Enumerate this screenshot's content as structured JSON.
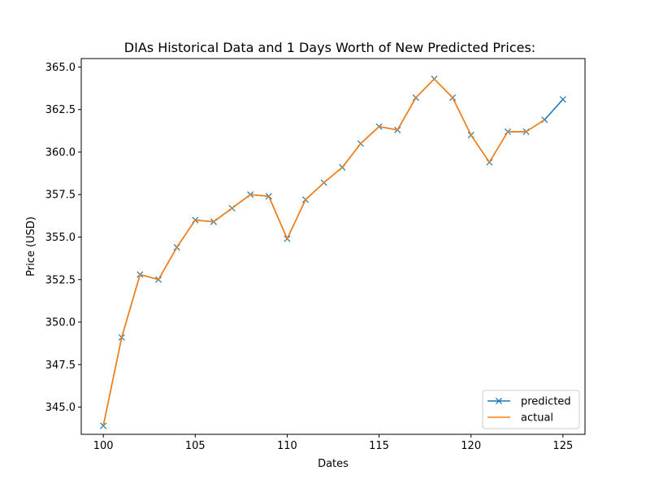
{
  "chart_data": {
    "type": "line",
    "title": "DIAs Historical Data and 1 Days Worth of New Predicted Prices:",
    "xlabel": "Dates",
    "ylabel": "Price (USD)",
    "xlim": [
      98.8,
      126.2
    ],
    "ylim": [
      343.4,
      365.5
    ],
    "xticks": [
      100,
      105,
      110,
      115,
      120,
      125
    ],
    "yticks": [
      345.0,
      347.5,
      350.0,
      352.5,
      355.0,
      357.5,
      360.0,
      362.5,
      365.0
    ],
    "xtick_labels": [
      "100",
      "105",
      "110",
      "115",
      "120",
      "125"
    ],
    "ytick_labels": [
      "345.0",
      "347.5",
      "350.0",
      "352.5",
      "355.0",
      "357.5",
      "360.0",
      "362.5",
      "365.0"
    ],
    "grid": false,
    "legend_position": "lower-right",
    "series": [
      {
        "name": "predicted",
        "color": "#1f77b4",
        "marker": "x",
        "x": [
          100,
          101,
          102,
          103,
          104,
          105,
          106,
          107,
          108,
          109,
          110,
          111,
          112,
          113,
          114,
          115,
          116,
          117,
          118,
          119,
          120,
          121,
          122,
          123,
          124,
          125
        ],
        "y": [
          343.9,
          349.1,
          352.8,
          352.5,
          354.4,
          356.0,
          355.9,
          356.7,
          357.5,
          357.4,
          354.9,
          357.2,
          358.2,
          359.1,
          360.5,
          361.5,
          361.3,
          363.2,
          364.3,
          363.2,
          361.0,
          359.4,
          361.2,
          361.2,
          361.9,
          363.1
        ]
      },
      {
        "name": "actual",
        "color": "#ff7f0e",
        "marker": "none",
        "x": [
          100,
          101,
          102,
          103,
          104,
          105,
          106,
          107,
          108,
          109,
          110,
          111,
          112,
          113,
          114,
          115,
          116,
          117,
          118,
          119,
          120,
          121,
          122,
          123,
          124
        ],
        "y": [
          343.9,
          349.1,
          352.8,
          352.5,
          354.4,
          356.0,
          355.9,
          356.7,
          357.5,
          357.4,
          354.9,
          357.2,
          358.2,
          359.1,
          360.5,
          361.5,
          361.3,
          363.2,
          364.3,
          363.2,
          361.0,
          359.4,
          361.2,
          361.2,
          361.9
        ]
      }
    ]
  }
}
